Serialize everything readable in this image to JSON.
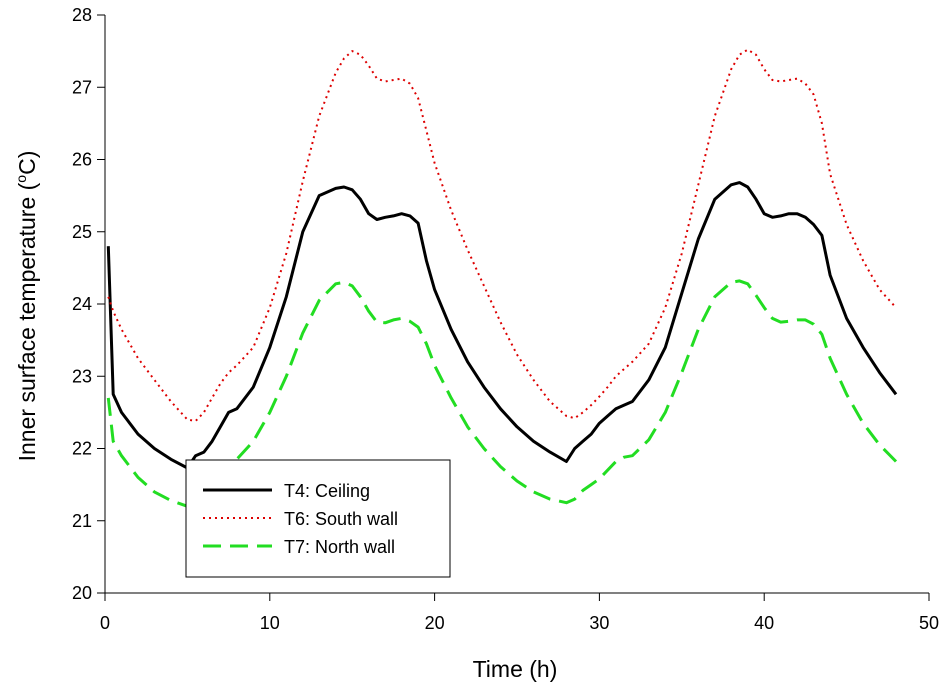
{
  "chart_data": {
    "type": "line",
    "title": "",
    "xlabel": "Time (h)",
    "ylabel_main": "Inner surface temperature (",
    "ylabel_sup": "o",
    "ylabel_unit": "C)",
    "xlim": [
      0,
      50
    ],
    "ylim": [
      20,
      28
    ],
    "xticks": [
      "0",
      "10",
      "20",
      "30",
      "40",
      "50"
    ],
    "yticks": [
      "20",
      "21",
      "22",
      "23",
      "24",
      "25",
      "26",
      "27",
      "28"
    ],
    "grid": false,
    "legend_position": "lower-left",
    "series": [
      {
        "name": "T4: Ceiling",
        "style": "solid",
        "color": "#000000",
        "x": [
          0.2,
          0.5,
          1,
          2,
          3,
          4,
          5,
          5.5,
          6,
          6.5,
          7,
          7.5,
          8,
          9,
          10,
          11,
          12,
          13,
          14,
          14.5,
          15,
          15.5,
          16,
          16.5,
          17,
          17.5,
          18,
          18.5,
          19,
          19.5,
          20,
          21,
          22,
          23,
          24,
          25,
          26,
          27,
          28,
          28.5,
          29,
          29.5,
          30,
          30.5,
          31,
          31.5,
          32,
          33,
          34,
          35,
          36,
          37,
          38,
          38.5,
          39,
          39.5,
          40,
          40.5,
          41,
          41.5,
          42,
          42.5,
          43,
          43.5,
          44,
          45,
          46,
          47,
          48
        ],
        "values": [
          24.8,
          22.75,
          22.5,
          22.2,
          22.0,
          21.85,
          21.73,
          21.9,
          21.95,
          22.1,
          22.3,
          22.5,
          22.55,
          22.85,
          23.4,
          24.1,
          25.0,
          25.5,
          25.6,
          25.62,
          25.58,
          25.45,
          25.25,
          25.17,
          25.2,
          25.22,
          25.25,
          25.22,
          25.12,
          24.6,
          24.2,
          23.65,
          23.2,
          22.85,
          22.55,
          22.3,
          22.1,
          21.95,
          21.82,
          22.0,
          22.1,
          22.2,
          22.35,
          22.45,
          22.55,
          22.6,
          22.65,
          22.95,
          23.4,
          24.15,
          24.9,
          25.45,
          25.65,
          25.68,
          25.62,
          25.45,
          25.25,
          25.2,
          25.22,
          25.25,
          25.25,
          25.2,
          25.1,
          24.95,
          24.4,
          23.8,
          23.4,
          23.05,
          22.75
        ]
      },
      {
        "name": "T6: South wall",
        "style": "dotted",
        "color": "#dd0000",
        "x": [
          0.2,
          0.5,
          1,
          2,
          3,
          4,
          5,
          5.5,
          6,
          6.5,
          7,
          7.5,
          8,
          9,
          10,
          11,
          12,
          13,
          14,
          14.5,
          15,
          15.5,
          16,
          16.5,
          17,
          17.5,
          18,
          18.5,
          19,
          19.5,
          20,
          21,
          22,
          23,
          24,
          25,
          26,
          27,
          28,
          28.5,
          29,
          29.5,
          30,
          30.5,
          31,
          31.5,
          32,
          33,
          34,
          35,
          36,
          37,
          38,
          38.5,
          39,
          39.5,
          40,
          40.5,
          41,
          41.5,
          42,
          42.5,
          43,
          43.5,
          44,
          45,
          46,
          47,
          48
        ],
        "values": [
          24.1,
          23.9,
          23.65,
          23.25,
          22.95,
          22.65,
          22.4,
          22.38,
          22.5,
          22.7,
          22.9,
          23.05,
          23.15,
          23.4,
          23.95,
          24.7,
          25.7,
          26.6,
          27.2,
          27.4,
          27.5,
          27.45,
          27.3,
          27.12,
          27.08,
          27.1,
          27.12,
          27.05,
          26.85,
          26.4,
          25.95,
          25.3,
          24.75,
          24.25,
          23.75,
          23.3,
          22.95,
          22.65,
          22.45,
          22.42,
          22.5,
          22.6,
          22.72,
          22.85,
          23.0,
          23.1,
          23.2,
          23.45,
          23.95,
          24.7,
          25.65,
          26.6,
          27.25,
          27.45,
          27.52,
          27.45,
          27.25,
          27.1,
          27.08,
          27.1,
          27.12,
          27.05,
          26.9,
          26.5,
          25.8,
          25.1,
          24.6,
          24.2,
          23.95
        ]
      },
      {
        "name": "T7: North wall",
        "style": "dashed",
        "color": "#22dd22",
        "x": [
          0.2,
          0.5,
          1,
          2,
          3,
          4,
          5,
          5.5,
          6,
          6.5,
          7,
          7.5,
          8,
          9,
          10,
          11,
          12,
          13,
          14,
          14.5,
          15,
          15.5,
          16,
          16.5,
          17,
          17.5,
          18,
          18.5,
          19,
          19.5,
          20,
          21,
          22,
          23,
          24,
          25,
          26,
          27,
          28,
          28.5,
          29,
          29.5,
          30,
          30.5,
          31,
          31.5,
          32,
          33,
          34,
          35,
          36,
          37,
          38,
          38.5,
          39,
          39.5,
          40,
          40.5,
          41,
          41.5,
          42,
          42.5,
          43,
          43.5,
          44,
          45,
          46,
          47,
          48
        ],
        "values": [
          22.7,
          22.1,
          21.9,
          21.6,
          21.4,
          21.28,
          21.2,
          21.35,
          21.5,
          21.62,
          21.72,
          21.8,
          21.85,
          22.1,
          22.5,
          23.0,
          23.6,
          24.05,
          24.28,
          24.3,
          24.25,
          24.1,
          23.9,
          23.75,
          23.74,
          23.78,
          23.8,
          23.76,
          23.68,
          23.45,
          23.15,
          22.7,
          22.3,
          22.0,
          21.75,
          21.55,
          21.4,
          21.3,
          21.25,
          21.3,
          21.42,
          21.5,
          21.58,
          21.7,
          21.82,
          21.88,
          21.9,
          22.12,
          22.5,
          23.05,
          23.65,
          24.1,
          24.3,
          24.32,
          24.28,
          24.12,
          23.95,
          23.8,
          23.75,
          23.76,
          23.78,
          23.78,
          23.72,
          23.58,
          23.25,
          22.75,
          22.35,
          22.05,
          21.82
        ]
      }
    ]
  }
}
